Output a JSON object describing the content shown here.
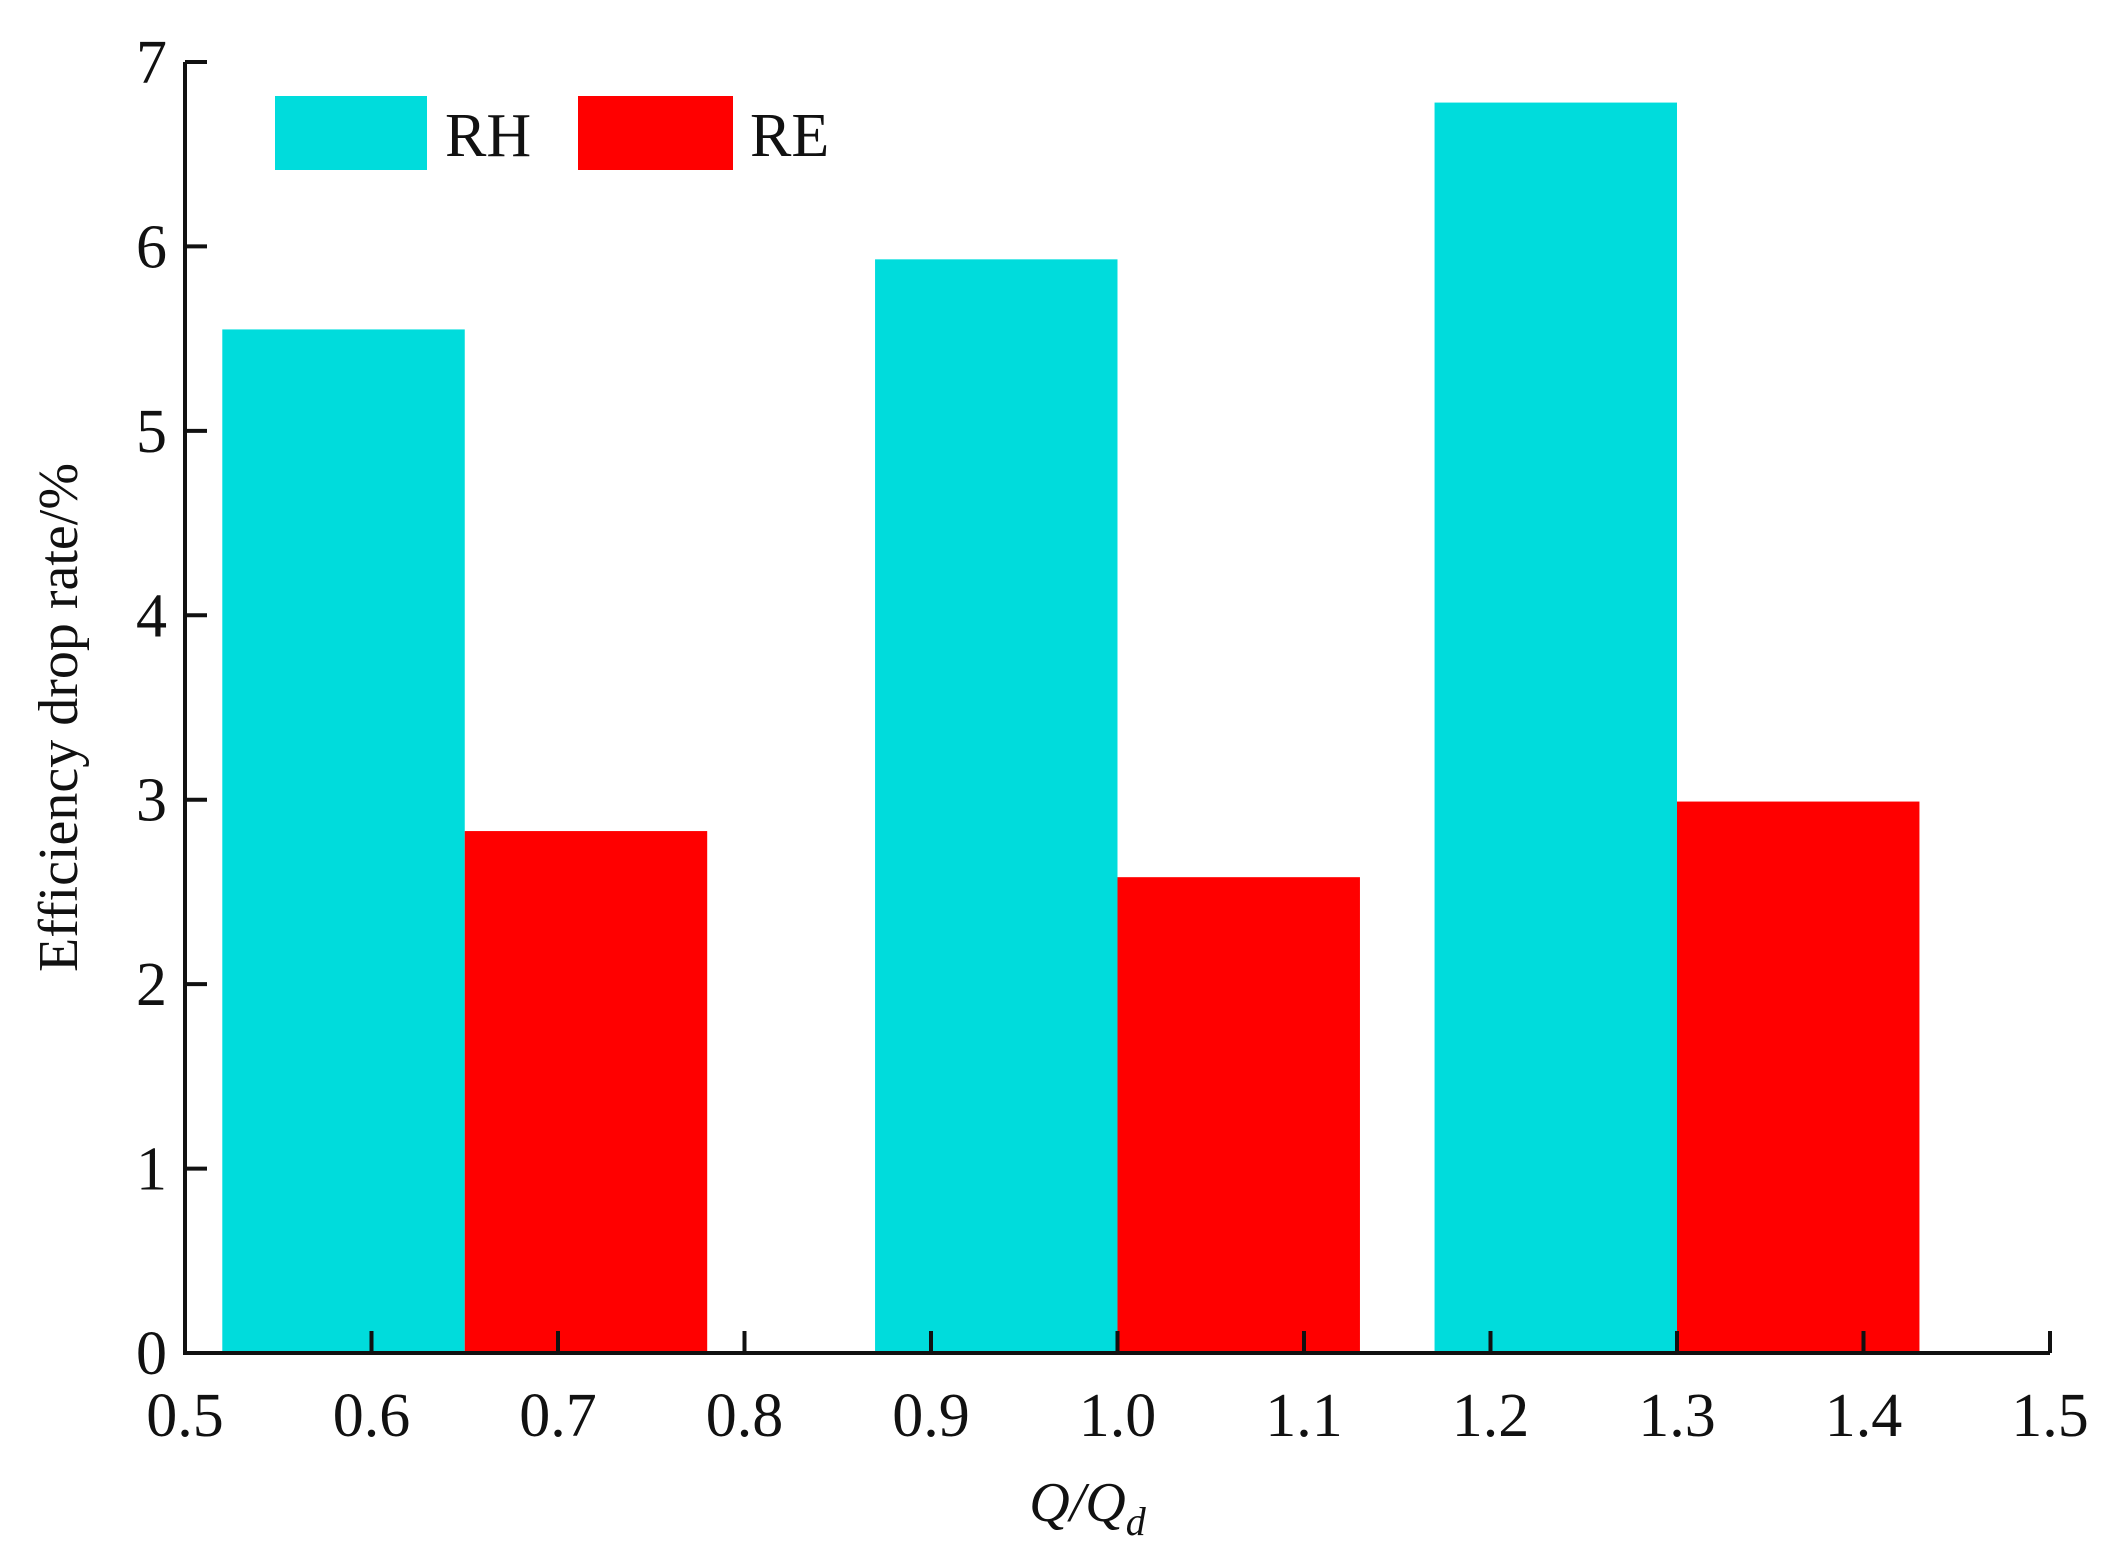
{
  "chart_data": {
    "type": "bar",
    "xlabel": "Q/Q_d",
    "xlabel_parts": {
      "main": "Q/Q",
      "sub": "d"
    },
    "ylabel": "Efficiency drop rate/%",
    "xlim": [
      0.5,
      1.5
    ],
    "ylim": [
      0,
      7
    ],
    "x_ticks": [
      "0.5",
      "0.6",
      "0.7",
      "0.8",
      "0.9",
      "1.0",
      "1.1",
      "1.2",
      "1.3",
      "1.4",
      "1.5"
    ],
    "y_ticks": [
      "0",
      "1",
      "2",
      "3",
      "4",
      "5",
      "6",
      "7"
    ],
    "categories": [
      "0.65",
      "1.0",
      "1.3"
    ],
    "series": [
      {
        "name": "RH",
        "color": "#00dcdc",
        "values": [
          5.55,
          5.93,
          6.78
        ],
        "x_start": [
          0.52,
          0.87,
          1.17
        ],
        "x_end": [
          0.65,
          1.0,
          1.3
        ]
      },
      {
        "name": "RE",
        "color": "#ff0000",
        "values": [
          2.83,
          2.58,
          2.99
        ],
        "x_start": [
          0.65,
          1.0,
          1.3
        ],
        "x_end": [
          0.78,
          1.13,
          1.43
        ]
      }
    ],
    "legend_position": "top-left",
    "grid": false
  }
}
